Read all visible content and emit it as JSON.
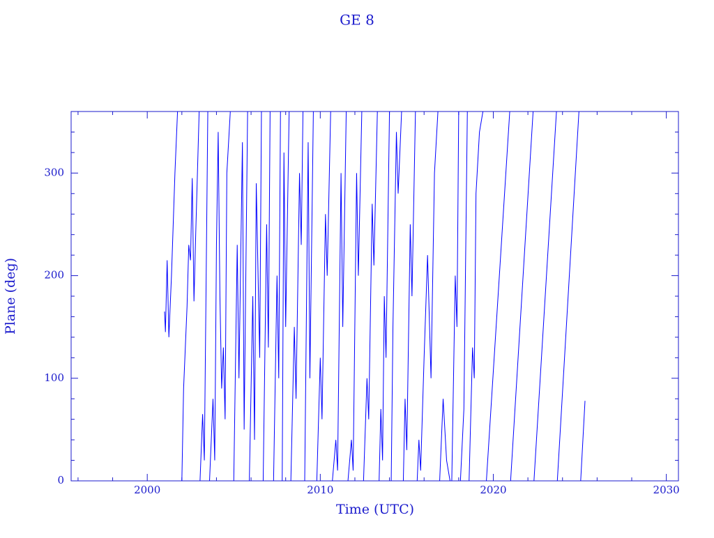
{
  "chart_data": {
    "type": "line",
    "title": "GE 8",
    "xlabel": "Time (UTC)",
    "ylabel": "Plane (deg)",
    "color": "#0000ff",
    "xlim": [
      1995.6,
      2030.7
    ],
    "ylim": [
      0,
      360
    ],
    "xticks": [
      2000,
      2010,
      2020,
      2030
    ],
    "yticks": [
      0,
      100,
      200,
      300
    ],
    "xminorticks": [
      1996,
      1998,
      2002,
      2004,
      2006,
      2008,
      2012,
      2014,
      2016,
      2018,
      2022,
      2024,
      2026,
      2028
    ],
    "yminorticks": [
      20,
      40,
      60,
      80,
      120,
      140,
      160,
      180,
      220,
      240,
      260,
      280,
      320,
      340
    ],
    "x": [
      2001.0,
      2001.05,
      2001.15,
      2001.25,
      2001.4,
      2001.6,
      2001.75,
      null,
      2002.0,
      2002.1,
      2002.3,
      2002.4,
      2002.5,
      2002.6,
      2002.7,
      2002.8,
      2003.0,
      null,
      2003.05,
      2003.2,
      2003.3,
      2003.5,
      null,
      2003.6,
      2003.8,
      2003.9,
      2004.0,
      2004.1,
      2004.2,
      2004.3,
      2004.4,
      2004.5,
      2004.6,
      2004.8,
      null,
      2005.0,
      2005.2,
      2005.3,
      2005.5,
      2005.6,
      2005.8,
      null,
      2005.9,
      2006.1,
      2006.2,
      2006.3,
      2006.5,
      2006.6,
      null,
      2006.7,
      2006.9,
      2007.0,
      2007.1,
      null,
      2007.3,
      2007.5,
      2007.6,
      2007.7,
      null,
      2007.8,
      2007.9,
      2008.0,
      2008.2,
      null,
      2008.3,
      2008.5,
      2008.6,
      2008.8,
      2008.9,
      2009.0,
      null,
      2009.1,
      2009.3,
      2009.4,
      2009.6,
      null,
      2009.8,
      2010.0,
      2010.1,
      2010.3,
      2010.4,
      2010.6,
      null,
      2010.7,
      2010.9,
      2011.0,
      2011.2,
      2011.3,
      2011.5,
      null,
      2011.6,
      2011.8,
      2011.9,
      2012.1,
      2012.2,
      2012.4,
      null,
      2012.5,
      2012.7,
      2012.8,
      2013.0,
      2013.1,
      2013.3,
      null,
      2013.4,
      2013.5,
      2013.6,
      2013.7,
      2013.8,
      2014.0,
      null,
      2014.1,
      2014.2,
      2014.4,
      2014.5,
      2014.7,
      null,
      2014.8,
      2014.9,
      2015.0,
      2015.2,
      2015.3,
      2015.5,
      null,
      2015.6,
      2015.7,
      2015.8,
      2016.0,
      2016.2,
      2016.4,
      2016.6,
      2016.8,
      null,
      2016.9,
      2017.1,
      2017.3,
      2017.5,
      null,
      2017.6,
      2017.8,
      2017.9,
      2018.0,
      null,
      2018.1,
      2018.3,
      2018.5,
      null,
      2018.6,
      2018.8,
      2018.9,
      2019.0,
      2019.2,
      2019.4,
      null,
      2019.6,
      2020.95,
      null,
      2021.0,
      2022.3,
      null,
      2022.35,
      2023.65,
      null,
      2023.7,
      2024.95,
      null,
      2025.05,
      2025.3
    ],
    "values": [
      165,
      145,
      215,
      140,
      200,
      300,
      360,
      null,
      0,
      90,
      170,
      230,
      215,
      295,
      175,
      240,
      360,
      null,
      0,
      65,
      20,
      360,
      null,
      0,
      80,
      20,
      230,
      340,
      180,
      90,
      130,
      60,
      300,
      360,
      null,
      0,
      230,
      100,
      330,
      50,
      360,
      null,
      0,
      180,
      40,
      290,
      120,
      360,
      null,
      0,
      250,
      130,
      360,
      null,
      0,
      200,
      100,
      360,
      null,
      0,
      320,
      150,
      360,
      null,
      0,
      150,
      80,
      300,
      230,
      360,
      null,
      0,
      330,
      100,
      360,
      null,
      0,
      120,
      60,
      260,
      200,
      360,
      null,
      0,
      40,
      10,
      300,
      150,
      360,
      null,
      0,
      40,
      10,
      300,
      200,
      360,
      null,
      0,
      100,
      60,
      270,
      210,
      360,
      null,
      0,
      70,
      20,
      180,
      120,
      360,
      null,
      0,
      150,
      340,
      280,
      360,
      null,
      0,
      80,
      30,
      250,
      180,
      360,
      null,
      0,
      40,
      10,
      120,
      220,
      100,
      300,
      360,
      null,
      0,
      80,
      20,
      0,
      null,
      0,
      200,
      150,
      360,
      null,
      0,
      70,
      360,
      null,
      0,
      130,
      100,
      280,
      340,
      360,
      null,
      0,
      360,
      null,
      0,
      360,
      null,
      0,
      360,
      null,
      0,
      360,
      null,
      0,
      78
    ]
  }
}
